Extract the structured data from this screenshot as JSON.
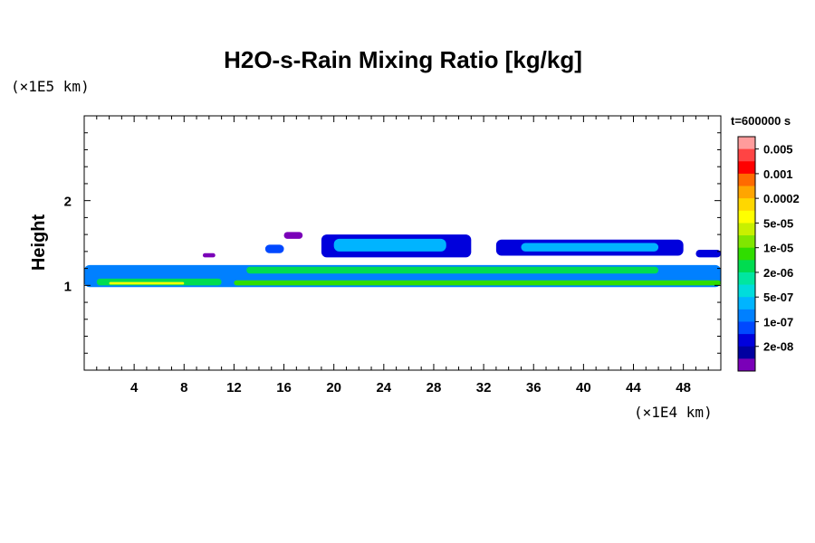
{
  "chart_data": {
    "type": "heatmap",
    "title": "H2O-s-Rain Mixing Ratio [kg/kg]",
    "ylabel": "Height",
    "xlabel": "",
    "x_scale_label": "(×1E4 km)",
    "y_scale_label": "(×1E5 km)",
    "xlim": [
      0,
      51
    ],
    "ylim": [
      0,
      3
    ],
    "x_ticks": [
      4,
      8,
      12,
      16,
      20,
      24,
      28,
      32,
      36,
      40,
      44,
      48
    ],
    "y_ticks": [
      1,
      2
    ],
    "x_minor_step": 1,
    "y_minor_step": 0.2,
    "time_label": "t=600000 s",
    "colorbar": {
      "labels": [
        "0.005",
        "0.001",
        "0.0002",
        "5e-05",
        "1e-05",
        "2e-06",
        "5e-07",
        "1e-07",
        "2e-08"
      ],
      "colors_top_to_bottom": [
        "#ff9c9c",
        "#ff4444",
        "#ff0000",
        "#ff6a00",
        "#ffa500",
        "#ffd700",
        "#ffff00",
        "#c8f000",
        "#80e600",
        "#30dd00",
        "#00dc50",
        "#00e6a0",
        "#00dcdc",
        "#00b4ff",
        "#0080ff",
        "#0048ff",
        "#0000dc",
        "#0000a0",
        "#7a00b8"
      ]
    },
    "regions": [
      {
        "level": 14,
        "x": [
          0,
          51
        ],
        "y": [
          0.98,
          1.24
        ]
      },
      {
        "level": 10,
        "x": [
          1,
          11
        ],
        "y": [
          1.0,
          1.08
        ]
      },
      {
        "level": 9,
        "x": [
          12,
          51
        ],
        "y": [
          1.0,
          1.06
        ]
      },
      {
        "level": 6,
        "x": [
          2,
          8
        ],
        "y": [
          1.01,
          1.04
        ]
      },
      {
        "level": 10,
        "x": [
          13,
          46
        ],
        "y": [
          1.14,
          1.22
        ]
      },
      {
        "level": 15,
        "x": [
          14.5,
          16
        ],
        "y": [
          1.38,
          1.48
        ]
      },
      {
        "level": 16,
        "x": [
          19,
          31
        ],
        "y": [
          1.33,
          1.6
        ]
      },
      {
        "level": 13,
        "x": [
          20,
          29
        ],
        "y": [
          1.4,
          1.55
        ]
      },
      {
        "level": 16,
        "x": [
          33,
          48
        ],
        "y": [
          1.35,
          1.54
        ]
      },
      {
        "level": 13,
        "x": [
          35,
          46
        ],
        "y": [
          1.4,
          1.5
        ]
      },
      {
        "level": 16,
        "x": [
          49,
          51
        ],
        "y": [
          1.33,
          1.42
        ]
      },
      {
        "level": 18,
        "x": [
          16,
          17.5
        ],
        "y": [
          1.55,
          1.63
        ]
      },
      {
        "level": 18,
        "x": [
          9.5,
          10.5
        ],
        "y": [
          1.33,
          1.38
        ]
      }
    ]
  }
}
